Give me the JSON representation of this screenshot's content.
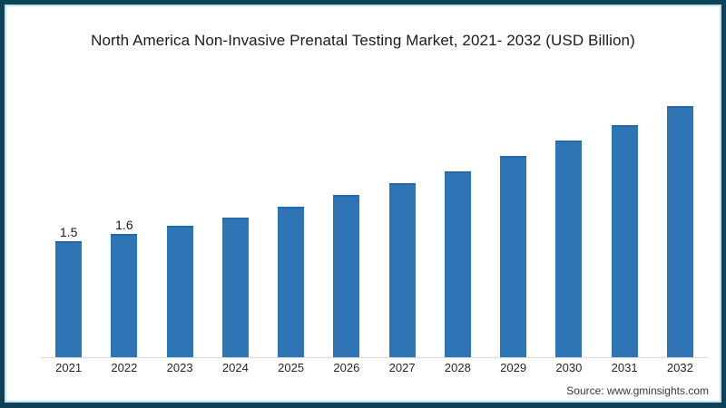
{
  "title": "North America Non-Invasive Prenatal Testing Market, 2021- 2032 (USD Billion)",
  "source": {
    "text": "Source: www.gminsights.com"
  },
  "colors": {
    "frame_border": "#0e4058",
    "frame_inner_line": "#bde4f2",
    "bar": "#2e75b6",
    "bar_top_edge": "#2368a8",
    "baseline": "#d9d9d9",
    "title_text": "#1b1b1b",
    "axis_text": "#262626",
    "source_text": "#3a3a3a",
    "background": "#ffffff"
  },
  "chart_data": {
    "type": "bar",
    "title": "North America Non-Invasive Prenatal Testing Market, 2021- 2032 (USD Billion)",
    "categories": [
      "2021",
      "2022",
      "2023",
      "2024",
      "2025",
      "2026",
      "2027",
      "2028",
      "2029",
      "2030",
      "2031",
      "2032"
    ],
    "values": [
      1.5,
      1.6,
      1.7,
      1.8,
      1.95,
      2.1,
      2.25,
      2.4,
      2.6,
      2.8,
      3.0,
      3.25
    ],
    "point_labels": [
      "1.5",
      "1.6",
      "",
      "",
      "",
      "",
      "",
      "",
      "",
      "",
      "",
      ""
    ],
    "xlabel": "",
    "ylabel": "",
    "ylim": [
      0,
      3.6
    ],
    "legend": "none",
    "grid": "off",
    "value_axis_visible": false,
    "bar_color": "#2e75b6"
  }
}
